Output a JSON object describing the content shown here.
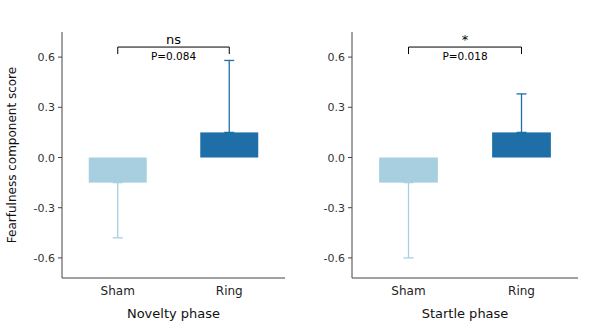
{
  "chart_data": [
    {
      "type": "bar",
      "xlabel": "Novelty phase",
      "ylabel": "Fearfulness component score",
      "categories": [
        "Sham",
        "Ring"
      ],
      "values": [
        -0.15,
        0.15
      ],
      "errors_lower": [
        0.33,
        0.0
      ],
      "errors_upper": [
        0.0,
        0.43
      ],
      "colors": [
        "#a8cfe0",
        "#1e6fa8"
      ],
      "bracket": {
        "y": 0.66,
        "label": "ns",
        "p_label": "P=0.084"
      },
      "ylim": [
        -0.72,
        0.75
      ],
      "yticks": [
        -0.6,
        -0.3,
        {
          "value": 0.0,
          "label": "0.0"
        },
        0.3,
        0.6
      ],
      "grid": false
    },
    {
      "type": "bar",
      "xlabel": "Startle phase",
      "categories": [
        "Sham",
        "Ring"
      ],
      "values": [
        -0.15,
        0.15
      ],
      "errors_lower": [
        0.45,
        0.0
      ],
      "errors_upper": [
        0.0,
        0.23
      ],
      "colors": [
        "#a8cfe0",
        "#1e6fa8"
      ],
      "bracket": {
        "y": 0.66,
        "label": "*",
        "p_label": "P=0.018"
      },
      "ylim": [
        -0.72,
        0.75
      ],
      "yticks": [
        -0.6,
        -0.3,
        {
          "value": 0.0,
          "label": "0.0"
        },
        0.3,
        0.6
      ],
      "grid": false
    }
  ]
}
